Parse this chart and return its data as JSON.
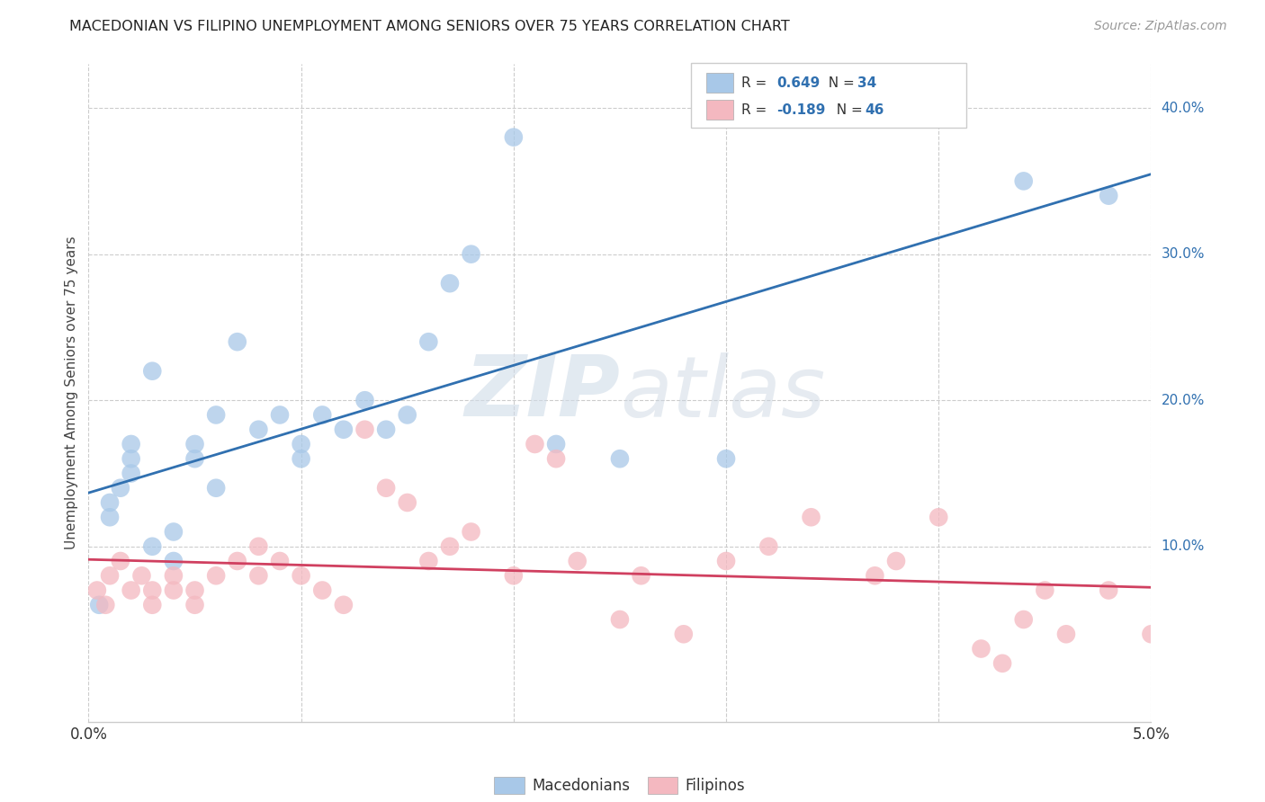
{
  "title": "MACEDONIAN VS FILIPINO UNEMPLOYMENT AMONG SENIORS OVER 75 YEARS CORRELATION CHART",
  "source": "Source: ZipAtlas.com",
  "ylabel": "Unemployment Among Seniors over 75 years",
  "xlim": [
    0.0,
    0.05
  ],
  "ylim": [
    -0.02,
    0.43
  ],
  "ytick_vals": [
    0.1,
    0.2,
    0.3,
    0.4
  ],
  "ytick_labels": [
    "10.0%",
    "20.0%",
    "30.0%",
    "40.0%"
  ],
  "xtick_vals": [
    0.0,
    0.01,
    0.02,
    0.03,
    0.04,
    0.05
  ],
  "macedonian_color": "#a8c8e8",
  "filipino_color": "#f4b8c0",
  "macedonian_line_color": "#3070b0",
  "filipino_line_color": "#d04060",
  "background_color": "#ffffff",
  "grid_color": "#cccccc",
  "watermark_zip": "ZIP",
  "watermark_atlas": "atlas",
  "macedonian_x": [
    0.0005,
    0.001,
    0.001,
    0.0015,
    0.002,
    0.002,
    0.002,
    0.003,
    0.003,
    0.004,
    0.004,
    0.005,
    0.005,
    0.006,
    0.006,
    0.007,
    0.008,
    0.009,
    0.01,
    0.01,
    0.011,
    0.012,
    0.013,
    0.014,
    0.015,
    0.016,
    0.017,
    0.018,
    0.02,
    0.022,
    0.025,
    0.03,
    0.044,
    0.048
  ],
  "macedonian_y": [
    0.06,
    0.12,
    0.13,
    0.14,
    0.15,
    0.16,
    0.17,
    0.1,
    0.22,
    0.09,
    0.11,
    0.16,
    0.17,
    0.14,
    0.19,
    0.24,
    0.18,
    0.19,
    0.16,
    0.17,
    0.19,
    0.18,
    0.2,
    0.18,
    0.19,
    0.24,
    0.28,
    0.3,
    0.38,
    0.17,
    0.16,
    0.16,
    0.35,
    0.34
  ],
  "filipino_x": [
    0.0004,
    0.0008,
    0.001,
    0.0015,
    0.002,
    0.0025,
    0.003,
    0.003,
    0.004,
    0.004,
    0.005,
    0.005,
    0.006,
    0.007,
    0.008,
    0.008,
    0.009,
    0.01,
    0.011,
    0.012,
    0.013,
    0.014,
    0.015,
    0.016,
    0.017,
    0.018,
    0.02,
    0.021,
    0.022,
    0.023,
    0.025,
    0.026,
    0.028,
    0.03,
    0.032,
    0.034,
    0.037,
    0.038,
    0.04,
    0.042,
    0.043,
    0.044,
    0.045,
    0.046,
    0.048,
    0.05
  ],
  "filipino_y": [
    0.07,
    0.06,
    0.08,
    0.09,
    0.07,
    0.08,
    0.06,
    0.07,
    0.08,
    0.07,
    0.06,
    0.07,
    0.08,
    0.09,
    0.08,
    0.1,
    0.09,
    0.08,
    0.07,
    0.06,
    0.18,
    0.14,
    0.13,
    0.09,
    0.1,
    0.11,
    0.08,
    0.17,
    0.16,
    0.09,
    0.05,
    0.08,
    0.04,
    0.09,
    0.1,
    0.12,
    0.08,
    0.09,
    0.12,
    0.03,
    0.02,
    0.05,
    0.07,
    0.04,
    0.07,
    0.04
  ]
}
